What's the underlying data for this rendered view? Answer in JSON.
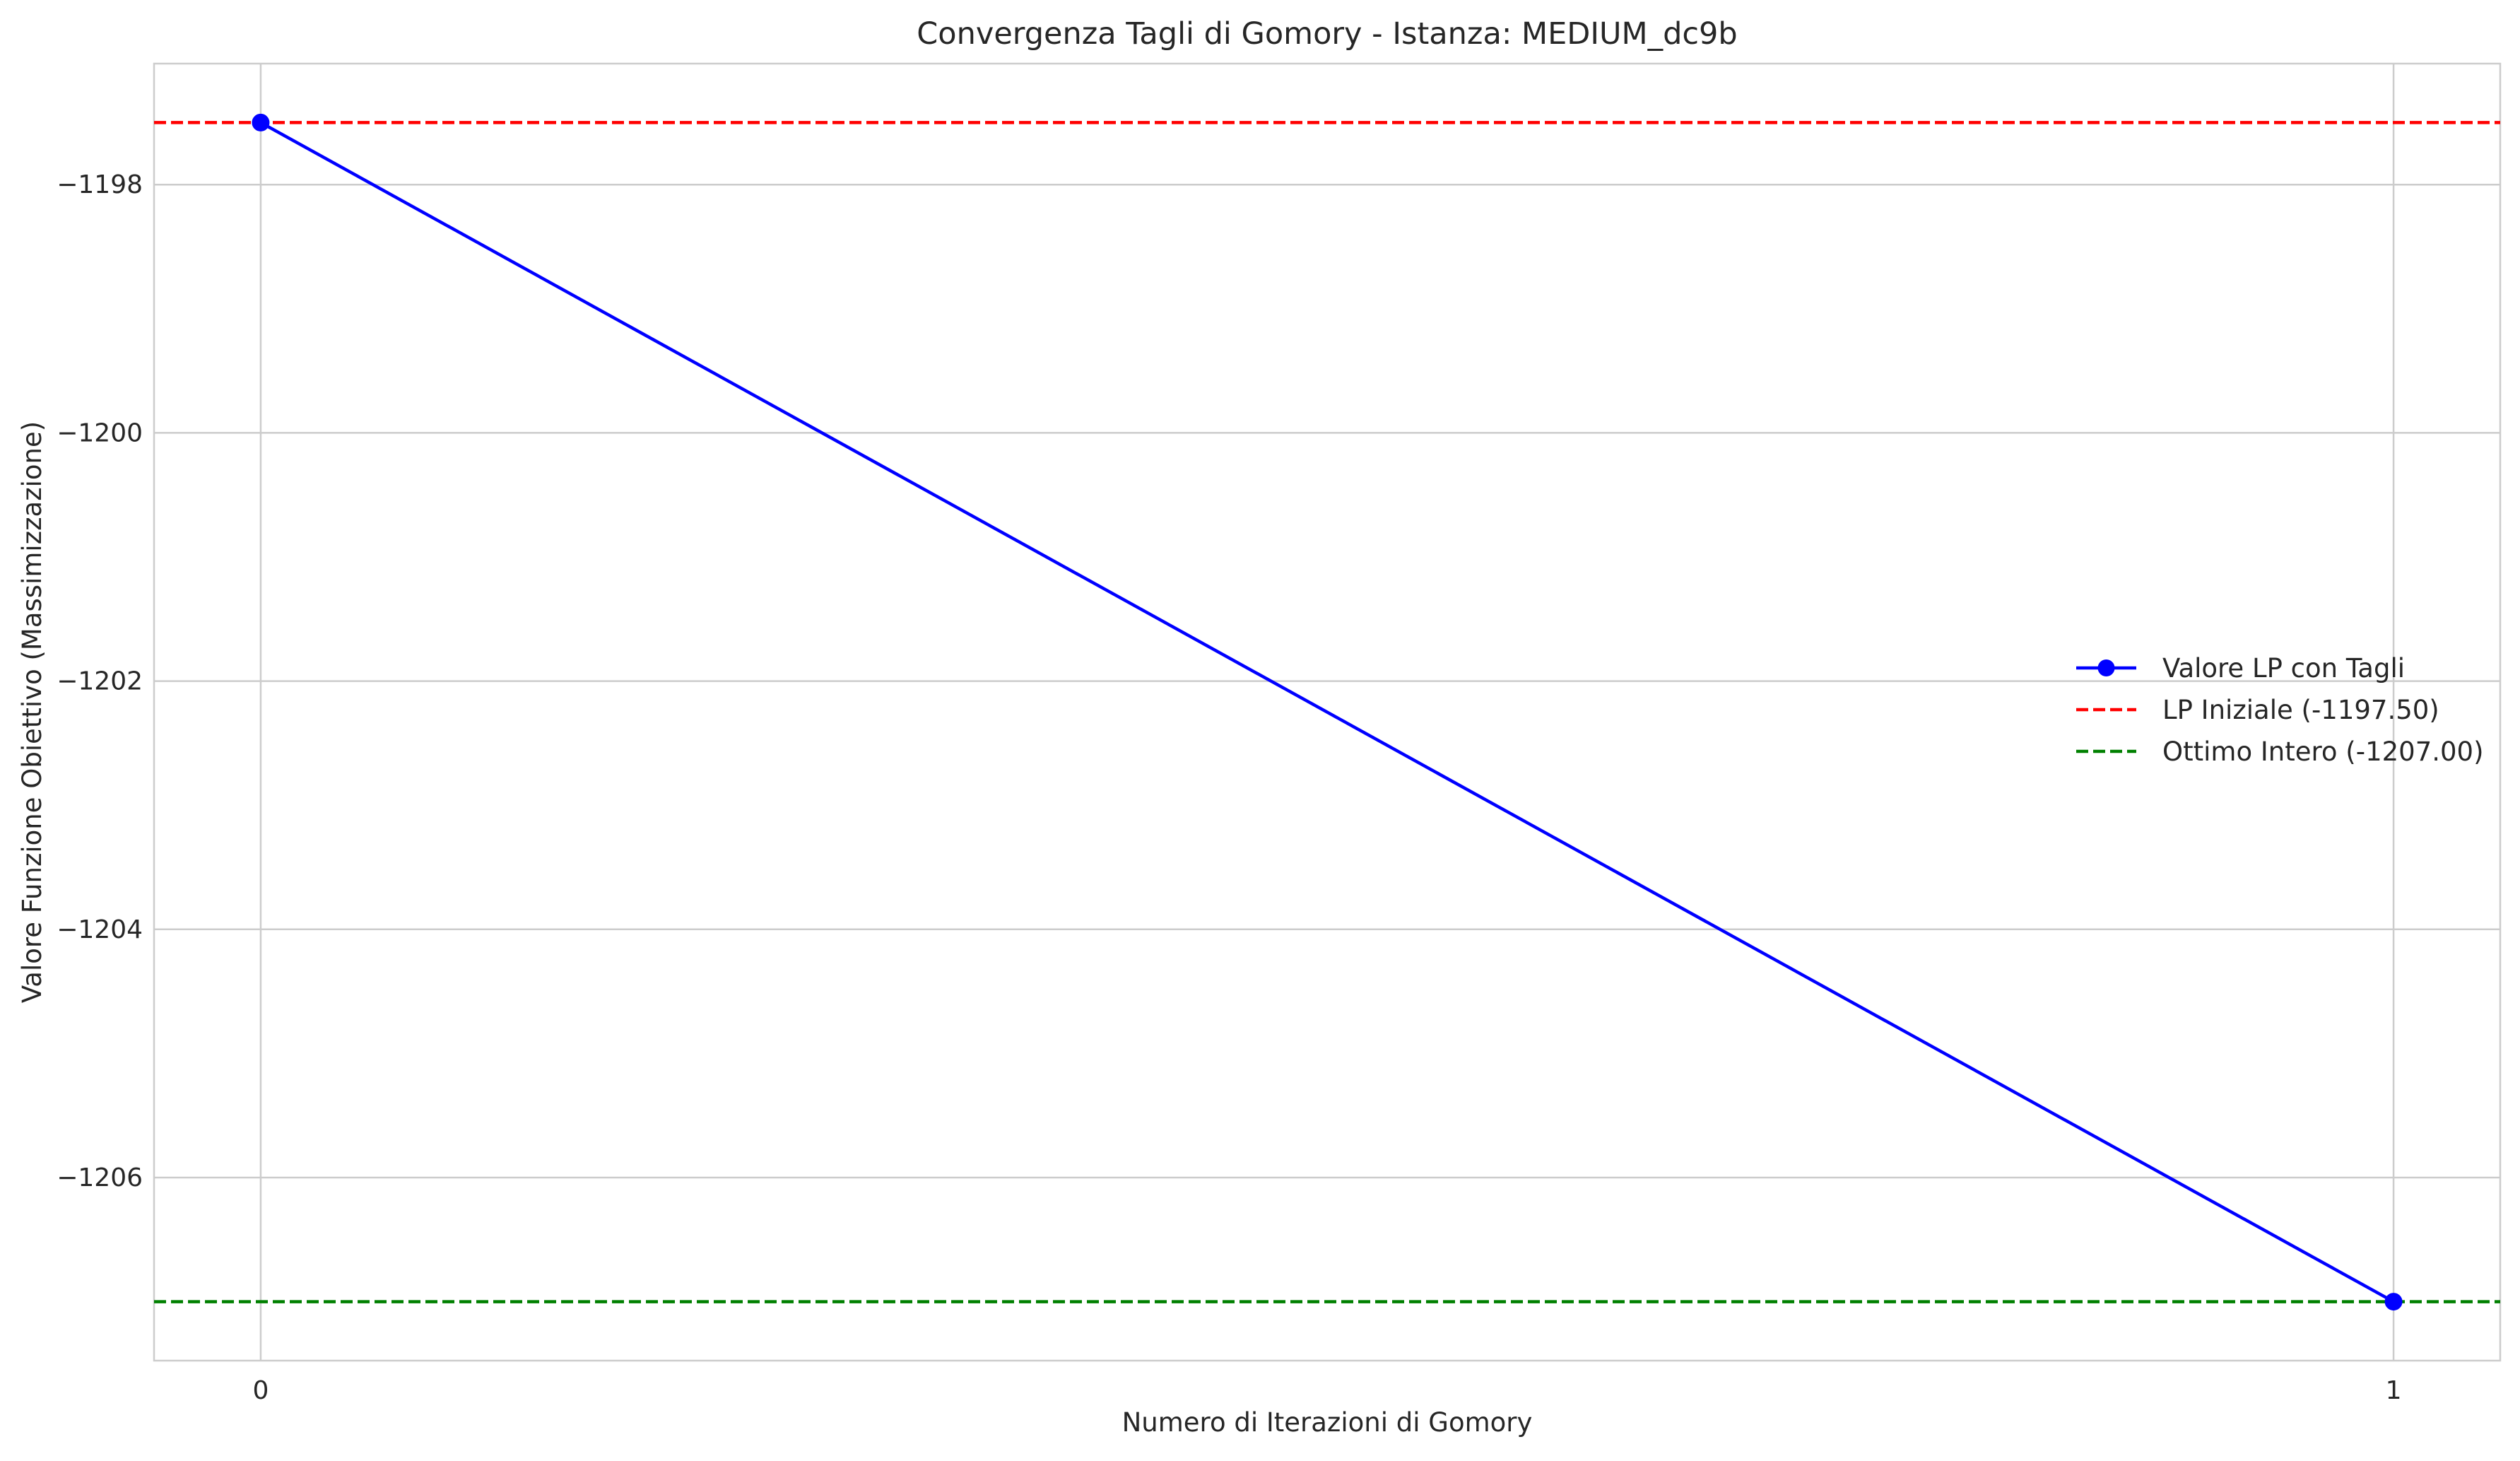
{
  "chart_data": {
    "type": "line",
    "title": "Convergenza Tagli di Gomory - Istanza: MEDIUM_dc9b",
    "xlabel": "Numero di Iterazioni di Gomory",
    "ylabel": "Valore Funzione Obiettivo (Massimizzazione)",
    "x": [
      0,
      1
    ],
    "xlim": [
      -0.05,
      1.05
    ],
    "ylim": [
      -1207.475,
      -1197.025
    ],
    "xticks": [
      0,
      1
    ],
    "xtick_labels": [
      "0",
      "1"
    ],
    "yticks": [
      -1198,
      -1200,
      -1202,
      -1204,
      -1206
    ],
    "ytick_labels": [
      "−1198",
      "−1200",
      "−1202",
      "−1204",
      "−1206"
    ],
    "grid": true,
    "legend_position": "center-right",
    "series": [
      {
        "name": "Valore LP con Tagli",
        "values": [
          -1197.5,
          -1207.0
        ],
        "color": "#0000ff",
        "style": "solid",
        "marker": "circle"
      }
    ],
    "reference_lines": [
      {
        "name": "LP Iniziale (-1197.50)",
        "y": -1197.5,
        "color": "#ff0000",
        "style": "dashed"
      },
      {
        "name": "Ottimo Intero (-1207.00)",
        "y": -1207.0,
        "color": "#008000",
        "style": "dashed"
      }
    ]
  }
}
